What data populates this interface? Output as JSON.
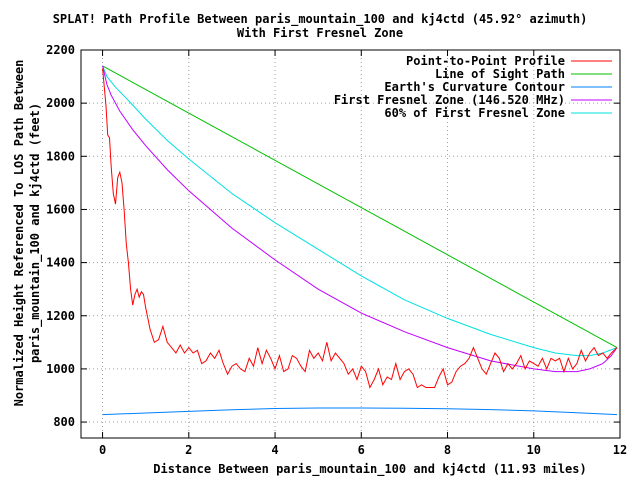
{
  "chart_data": {
    "type": "line",
    "title": "SPLAT! Path Profile Between paris_mountain_100 and kj4ctd (45.92° azimuth)",
    "subtitle": "With First Fresnel Zone",
    "xlabel": "Distance Between paris_mountain_100 and kj4ctd (11.93 miles)",
    "ylabel_lines": [
      "Normalized Height Referenced To LOS Path Between",
      "paris_mountain_100 and kj4ctd (feet)"
    ],
    "xlim": [
      -0.5,
      12
    ],
    "ylim": [
      740,
      2200
    ],
    "xticks": [
      0,
      2,
      4,
      6,
      8,
      10,
      12
    ],
    "yticks": [
      800,
      1000,
      1200,
      1400,
      1600,
      1800,
      2000,
      2200
    ],
    "grid": true,
    "legend_position": "top-right",
    "series": [
      {
        "name": "Point-to-Point Profile",
        "color": "#ff0000",
        "x": [
          0,
          0.04,
          0.08,
          0.12,
          0.16,
          0.2,
          0.25,
          0.3,
          0.35,
          0.4,
          0.45,
          0.5,
          0.55,
          0.6,
          0.65,
          0.7,
          0.75,
          0.8,
          0.85,
          0.9,
          0.95,
          1.0,
          1.1,
          1.2,
          1.3,
          1.4,
          1.5,
          1.6,
          1.7,
          1.8,
          1.9,
          2.0,
          2.1,
          2.2,
          2.3,
          2.4,
          2.5,
          2.6,
          2.7,
          2.8,
          2.9,
          3.0,
          3.1,
          3.2,
          3.3,
          3.4,
          3.5,
          3.6,
          3.7,
          3.8,
          3.9,
          4.0,
          4.1,
          4.2,
          4.3,
          4.4,
          4.5,
          4.6,
          4.7,
          4.8,
          4.9,
          5.0,
          5.1,
          5.2,
          5.3,
          5.4,
          5.5,
          5.6,
          5.7,
          5.8,
          5.9,
          6.0,
          6.1,
          6.2,
          6.3,
          6.4,
          6.5,
          6.6,
          6.7,
          6.8,
          6.9,
          7.0,
          7.1,
          7.2,
          7.3,
          7.4,
          7.5,
          7.6,
          7.7,
          7.8,
          7.9,
          8.0,
          8.1,
          8.2,
          8.3,
          8.4,
          8.5,
          8.6,
          8.7,
          8.8,
          8.9,
          9.0,
          9.1,
          9.2,
          9.3,
          9.4,
          9.5,
          9.6,
          9.7,
          9.8,
          9.9,
          10.0,
          10.1,
          10.2,
          10.3,
          10.4,
          10.5,
          10.6,
          10.7,
          10.8,
          10.9,
          11.0,
          11.1,
          11.2,
          11.3,
          11.4,
          11.5,
          11.6,
          11.7,
          11.8,
          11.93
        ],
        "values": [
          2130,
          2060,
          1990,
          1880,
          1870,
          1760,
          1660,
          1620,
          1720,
          1740,
          1700,
          1600,
          1470,
          1400,
          1300,
          1240,
          1280,
          1300,
          1270,
          1290,
          1280,
          1230,
          1150,
          1100,
          1110,
          1160,
          1100,
          1080,
          1060,
          1090,
          1060,
          1080,
          1060,
          1070,
          1020,
          1030,
          1060,
          1040,
          1070,
          1020,
          980,
          1010,
          1020,
          1000,
          990,
          1040,
          1010,
          1080,
          1020,
          1070,
          1040,
          1000,
          1050,
          990,
          1000,
          1050,
          1040,
          1010,
          990,
          1070,
          1040,
          1060,
          1030,
          1100,
          1030,
          1060,
          1040,
          1020,
          980,
          1000,
          960,
          1010,
          990,
          930,
          960,
          1000,
          940,
          970,
          960,
          1020,
          960,
          990,
          1000,
          980,
          930,
          940,
          930,
          930,
          930,
          970,
          1000,
          940,
          950,
          990,
          1010,
          1020,
          1040,
          1080,
          1040,
          1000,
          980,
          1020,
          1060,
          1040,
          990,
          1020,
          1000,
          1020,
          1050,
          1000,
          1030,
          1020,
          1010,
          1040,
          1000,
          1040,
          1030,
          1040,
          990,
          1040,
          1000,
          1020,
          1070,
          1030,
          1060,
          1080,
          1050,
          1060,
          1040,
          1060,
          1080
        ]
      },
      {
        "name": "Line of Sight Path",
        "color": "#00c000",
        "x": [
          0,
          11.93
        ],
        "values": [
          2140,
          1080
        ]
      },
      {
        "name": "Earth's Curvature Contour",
        "color": "#0080ff",
        "x": [
          0,
          1,
          2,
          3,
          4,
          5,
          6,
          7,
          8,
          9,
          10,
          11,
          11.93
        ],
        "values": [
          828,
          834,
          840,
          846,
          851,
          853,
          853,
          852,
          850,
          847,
          842,
          835,
          828
        ]
      },
      {
        "name": "First Fresnel Zone (146.520 MHz)",
        "color": "#c000ff",
        "x": [
          0,
          0.1,
          0.2,
          0.4,
          0.7,
          1,
          1.5,
          2,
          3,
          4,
          5,
          6,
          7,
          8,
          9,
          10,
          10.5,
          11,
          11.3,
          11.6,
          11.8,
          11.93
        ],
        "values": [
          2140,
          2070,
          2030,
          1970,
          1900,
          1840,
          1750,
          1670,
          1530,
          1410,
          1300,
          1210,
          1140,
          1080,
          1030,
          1000,
          990,
          990,
          1000,
          1020,
          1050,
          1080
        ]
      },
      {
        "name": "60% of First Fresnel Zone",
        "color": "#00e0e0",
        "x": [
          0,
          0.1,
          0.3,
          0.6,
          1,
          1.5,
          2,
          3,
          4,
          5,
          6,
          7,
          8,
          9,
          10,
          10.5,
          11,
          11.3,
          11.6,
          11.93
        ],
        "values": [
          2140,
          2100,
          2060,
          2010,
          1940,
          1860,
          1790,
          1660,
          1550,
          1450,
          1350,
          1260,
          1190,
          1130,
          1080,
          1060,
          1050,
          1050,
          1060,
          1080
        ]
      }
    ]
  }
}
